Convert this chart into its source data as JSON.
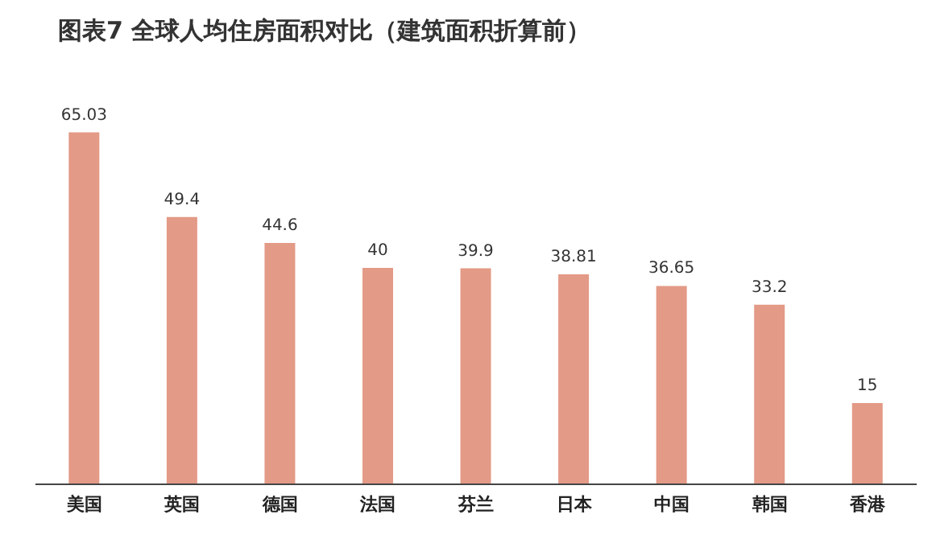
{
  "chart_data": {
    "type": "bar",
    "title": "图表7  全球人均住房面积对比（建筑面积折算前）",
    "categories": [
      "美国",
      "英国",
      "德国",
      "法国",
      "芬兰",
      "日本",
      "中国",
      "韩国",
      "香港"
    ],
    "values": [
      65.03,
      49.4,
      44.6,
      40,
      39.9,
      38.81,
      36.65,
      33.2,
      15
    ],
    "color": "#e39a86",
    "data_labels": true,
    "grid": false,
    "legend": false
  }
}
